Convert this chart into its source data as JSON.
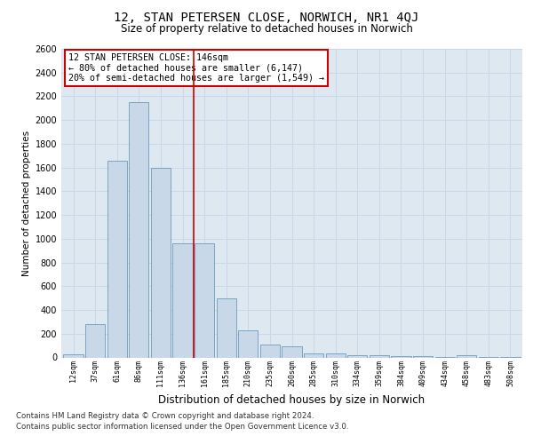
{
  "title": "12, STAN PETERSEN CLOSE, NORWICH, NR1 4QJ",
  "subtitle": "Size of property relative to detached houses in Norwich",
  "xlabel": "Distribution of detached houses by size in Norwich",
  "ylabel": "Number of detached properties",
  "categories": [
    "12sqm",
    "37sqm",
    "61sqm",
    "86sqm",
    "111sqm",
    "136sqm",
    "161sqm",
    "185sqm",
    "210sqm",
    "235sqm",
    "260sqm",
    "285sqm",
    "310sqm",
    "334sqm",
    "359sqm",
    "384sqm",
    "409sqm",
    "434sqm",
    "458sqm",
    "483sqm",
    "508sqm"
  ],
  "values": [
    25,
    280,
    1660,
    2150,
    1600,
    960,
    960,
    500,
    230,
    110,
    90,
    35,
    30,
    22,
    15,
    10,
    8,
    5,
    15,
    5,
    5
  ],
  "bar_color": "#c8d8e8",
  "bar_edge_color": "#5a8db0",
  "vline_x_index": 5.5,
  "vline_color": "#cc0000",
  "annotation_text": "12 STAN PETERSEN CLOSE: 146sqm\n← 80% of detached houses are smaller (6,147)\n20% of semi-detached houses are larger (1,549) →",
  "annotation_box_color": "#ffffff",
  "annotation_box_edge_color": "#cc0000",
  "ylim": [
    0,
    2600
  ],
  "yticks": [
    0,
    200,
    400,
    600,
    800,
    1000,
    1200,
    1400,
    1600,
    1800,
    2000,
    2200,
    2400,
    2600
  ],
  "grid_color": "#c8d8e8",
  "background_color": "#dde8f0",
  "footer_line1": "Contains HM Land Registry data © Crown copyright and database right 2024.",
  "footer_line2": "Contains public sector information licensed under the Open Government Licence v3.0."
}
